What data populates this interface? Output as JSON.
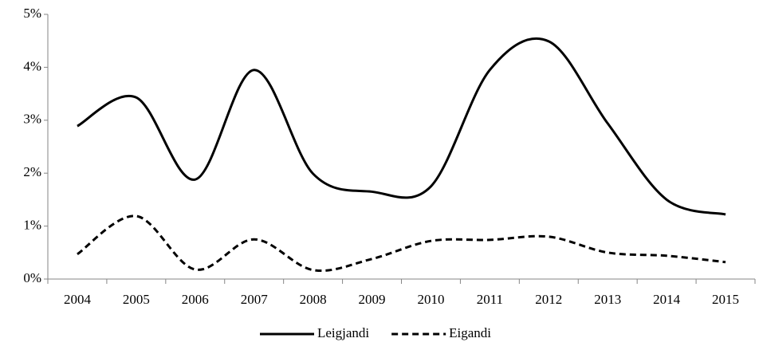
{
  "chart_data": {
    "type": "line",
    "categories": [
      "2004",
      "2005",
      "2006",
      "2007",
      "2008",
      "2009",
      "2010",
      "2011",
      "2012",
      "2013",
      "2014",
      "2015"
    ],
    "series": [
      {
        "name": "Leigjandi",
        "color": "#000000",
        "dash": "solid",
        "values": [
          2.89,
          3.43,
          1.88,
          3.95,
          1.99,
          1.65,
          1.75,
          3.95,
          4.49,
          2.94,
          1.5,
          1.22
        ]
      },
      {
        "name": "Eigandi",
        "color": "#000000",
        "dash": "dashed",
        "values": [
          0.47,
          1.19,
          0.18,
          0.75,
          0.17,
          0.38,
          0.72,
          0.74,
          0.8,
          0.5,
          0.44,
          0.32
        ]
      }
    ],
    "ylim": [
      0,
      5
    ],
    "yticks": [
      {
        "value": 0,
        "label": "0%"
      },
      {
        "value": 1,
        "label": "1%"
      },
      {
        "value": 2,
        "label": "2%"
      },
      {
        "value": 3,
        "label": "3%"
      },
      {
        "value": 4,
        "label": "4%"
      },
      {
        "value": 5,
        "label": "5%"
      }
    ],
    "grid": false,
    "smooth": true,
    "legend": "bottom"
  }
}
